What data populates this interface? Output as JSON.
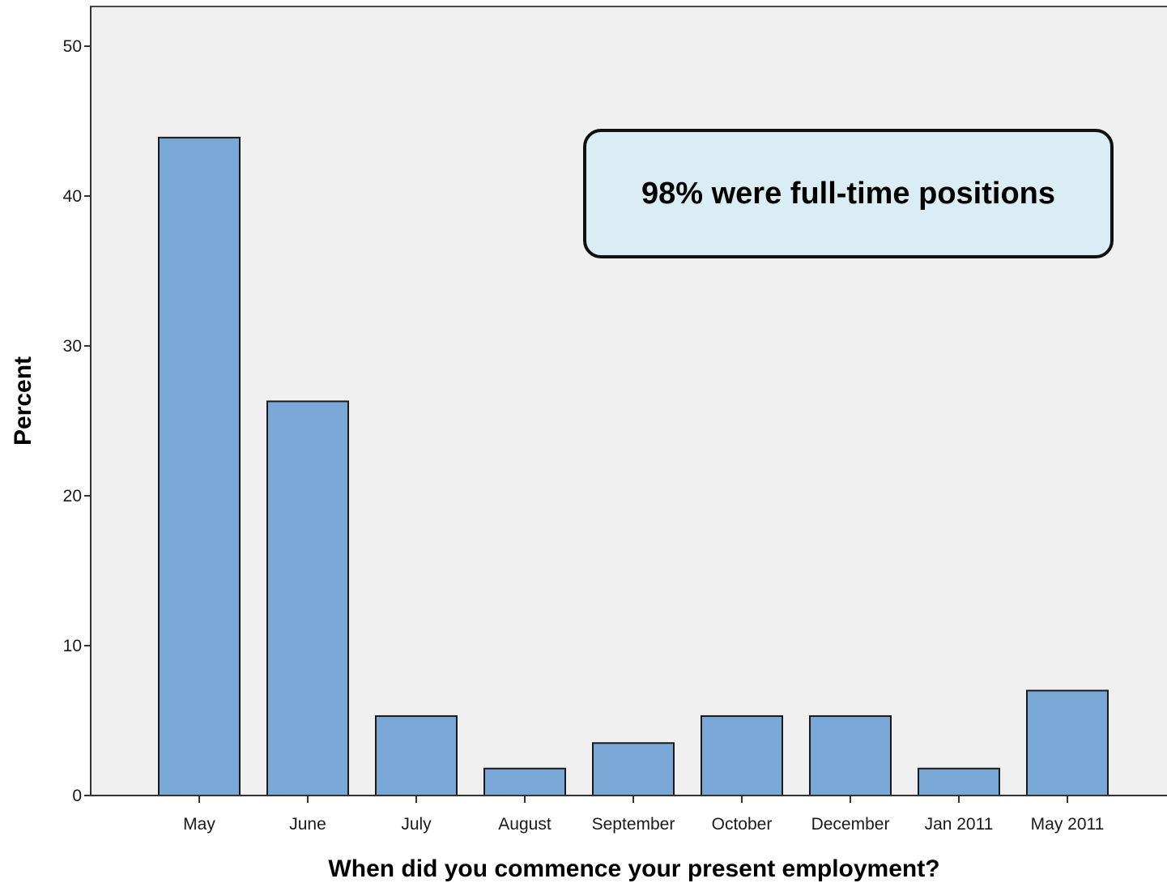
{
  "chart_data": {
    "type": "bar",
    "title": "",
    "xlabel": "When did you commence your present employment?",
    "ylabel": "Percent",
    "ylim": [
      0,
      52
    ],
    "yticks": [
      0,
      10,
      20,
      30,
      40,
      50
    ],
    "categories": [
      "May",
      "June",
      "July",
      "August",
      "September",
      "October",
      "December",
      "Jan 2011",
      "May 2011"
    ],
    "values": [
      43.9,
      26.3,
      5.3,
      1.8,
      3.5,
      5.3,
      5.3,
      1.8,
      7.0
    ],
    "grid": false,
    "colors": {
      "bar_fill": "#7aa8d6",
      "bar_stroke": "#1a1a1a",
      "plot_background": "#f0f0f0"
    },
    "annotation": "98% were full-time positions"
  }
}
